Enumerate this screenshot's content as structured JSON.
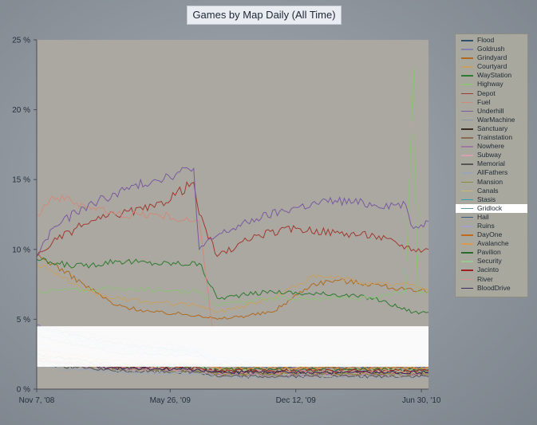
{
  "chart_data": {
    "type": "line",
    "title": "Games by Map Daily (All Time)",
    "xlabel": "",
    "ylabel": "",
    "ylim": [
      0,
      25
    ],
    "yticks": [
      "0 %",
      "5 %",
      "10 %",
      "15 %",
      "20 %",
      "25 %"
    ],
    "xtick_labels": [
      "Nov 7, '08",
      "May 26, '09",
      "Dec 12, '09",
      "Jun 30, '10"
    ],
    "highlight_band": [
      1.6,
      4.5
    ],
    "highlighted_series": "Gridlock",
    "legend_placement": "right",
    "series": [
      {
        "name": "Flood",
        "color": "#2d4f6e",
        "x": [
          0,
          100,
          150,
          207,
          230,
          300,
          380,
          430,
          480,
          499
        ],
        "y": [
          4.5,
          3.3,
          3.0,
          2.6,
          1.7,
          1.5,
          1.5,
          1.6,
          1.6,
          1.6
        ]
      },
      {
        "name": "Goldrush",
        "color": "#7f7fb0",
        "x": [
          0,
          100,
          200,
          207,
          230,
          300,
          380,
          430,
          480,
          499
        ],
        "y": [
          4.6,
          3.6,
          3.0,
          2.8,
          1.8,
          1.6,
          1.6,
          1.6,
          1.6,
          1.6
        ]
      },
      {
        "name": "Grindyard",
        "color": "#b06a1f",
        "x": [
          0,
          20,
          60,
          100,
          150,
          207,
          230,
          300,
          350,
          380,
          430,
          480,
          499
        ],
        "y": [
          9.5,
          9.0,
          7.5,
          6.0,
          5.5,
          5.3,
          5.0,
          5.5,
          7.5,
          7.8,
          7.5,
          7.0,
          7.0
        ]
      },
      {
        "name": "Courtyard",
        "color": "#c8a060",
        "x": [
          0,
          20,
          60,
          100,
          150,
          207,
          230,
          300,
          350,
          380,
          430,
          480,
          499
        ],
        "y": [
          9.0,
          8.5,
          7.0,
          6.5,
          6.2,
          6.0,
          5.5,
          6.5,
          8.0,
          8.0,
          7.5,
          7.5,
          7.0
        ]
      },
      {
        "name": "WayStation",
        "color": "#2f7a2f",
        "x": [
          0,
          20,
          60,
          100,
          150,
          207,
          230,
          300,
          350,
          380,
          430,
          480,
          499
        ],
        "y": [
          9.3,
          9.0,
          8.8,
          9.2,
          9.0,
          9.0,
          6.5,
          7.0,
          6.8,
          6.8,
          6.5,
          5.5,
          5.5
        ]
      },
      {
        "name": "Highway",
        "color": "#8fbf7a",
        "x": [
          0,
          100,
          207,
          230,
          300,
          430,
          470,
          480,
          485,
          490,
          499
        ],
        "y": [
          7.0,
          7.2,
          7.0,
          6.0,
          6.5,
          6.5,
          7.0,
          23.0,
          7.0,
          7.0,
          7.0
        ]
      },
      {
        "name": "Depot",
        "color": "#a03a30",
        "x": [
          0,
          20,
          60,
          100,
          150,
          200,
          207,
          230,
          280,
          330,
          380,
          430,
          480,
          499
        ],
        "y": [
          9.5,
          10.5,
          11.8,
          12.5,
          13.0,
          14.8,
          12.5,
          9.5,
          11.0,
          11.5,
          11.2,
          11.0,
          10.0,
          10.0
        ]
      },
      {
        "name": "Fuel",
        "color": "#d08a7a",
        "x": [
          0,
          20,
          60,
          100,
          150,
          200,
          207,
          230,
          300,
          400,
          499
        ],
        "y": [
          12.5,
          13.8,
          13.2,
          12.5,
          12.5,
          12.0,
          12.0,
          1.5,
          1.3,
          1.3,
          1.3
        ]
      },
      {
        "name": "Underhill",
        "color": "#7a5aa0",
        "x": [
          0,
          20,
          60,
          100,
          150,
          200,
          207,
          230,
          280,
          330,
          380,
          430,
          470,
          480,
          499
        ],
        "y": [
          9.5,
          11.5,
          13.0,
          14.0,
          15.0,
          15.8,
          10.0,
          11.0,
          12.2,
          13.0,
          13.5,
          13.2,
          13.2,
          11.5,
          12.0
        ]
      },
      {
        "name": "WarMachine",
        "color": "#8a96a8",
        "x": [
          0,
          100,
          207,
          230,
          300,
          400,
          499
        ],
        "y": [
          3.0,
          2.0,
          1.8,
          1.5,
          1.4,
          1.4,
          1.4
        ]
      },
      {
        "name": "Sanctuary",
        "color": "#3a2a20",
        "x": [
          0,
          100,
          207,
          230,
          300,
          400,
          499
        ],
        "y": [
          2.5,
          1.6,
          1.5,
          1.2,
          1.2,
          1.2,
          1.2
        ]
      },
      {
        "name": "Trainstation",
        "color": "#8a6a55",
        "x": [
          0,
          100,
          207,
          230,
          300,
          400,
          499
        ],
        "y": [
          2.2,
          1.5,
          1.4,
          1.1,
          1.1,
          1.1,
          1.1
        ]
      },
      {
        "name": "Nowhere",
        "color": "#a07aa0",
        "x": [
          0,
          100,
          207,
          230,
          300,
          400,
          499
        ],
        "y": [
          2.0,
          1.4,
          1.3,
          1.0,
          1.0,
          1.0,
          1.0
        ]
      },
      {
        "name": "Subway",
        "color": "#d8a0b0",
        "x": [
          0,
          100,
          207,
          230,
          300,
          400,
          499
        ],
        "y": [
          3.5,
          2.5,
          2.2,
          1.8,
          1.8,
          1.8,
          1.8
        ]
      },
      {
        "name": "Memorial",
        "color": "#555555",
        "x": [
          0,
          100,
          207,
          230,
          300,
          400,
          499
        ],
        "y": [
          1.8,
          1.3,
          1.2,
          0.9,
          0.9,
          0.9,
          0.9
        ]
      },
      {
        "name": "AllFathers",
        "color": "#9aa6b8",
        "x": [
          0,
          100,
          207,
          230,
          300,
          400,
          499
        ],
        "y": [
          1.6,
          1.2,
          1.1,
          0.8,
          0.8,
          0.8,
          0.8
        ]
      },
      {
        "name": "Mansion",
        "color": "#8a8a3a",
        "x": [
          0,
          100,
          207,
          230,
          300,
          400,
          499
        ],
        "y": [
          2.0,
          1.5,
          1.3,
          1.1,
          1.1,
          1.1,
          1.1
        ]
      },
      {
        "name": "Canals",
        "color": "#c8b870",
        "x": [
          0,
          100,
          207,
          230,
          300,
          400,
          499
        ],
        "y": [
          3.5,
          2.2,
          2.0,
          1.7,
          1.7,
          1.7,
          1.7
        ]
      },
      {
        "name": "Stasis",
        "color": "#2aa0b8",
        "x": [
          0,
          100,
          207,
          230,
          300,
          400,
          499
        ],
        "y": [
          4.3,
          3.0,
          2.8,
          2.0,
          1.9,
          1.9,
          1.9
        ]
      },
      {
        "name": "Gridlock",
        "color": "#5a9aa8",
        "x": [
          0,
          100,
          207,
          230,
          300,
          400,
          499
        ],
        "y": [
          4.0,
          2.8,
          2.6,
          2.2,
          2.0,
          2.0,
          2.0
        ]
      },
      {
        "name": "Hail",
        "color": "#3a5a80",
        "x": [
          0,
          100,
          207,
          230,
          300,
          400,
          499
        ],
        "y": [
          3.8,
          2.6,
          2.4,
          1.9,
          1.8,
          1.8,
          1.8
        ]
      },
      {
        "name": "Ruins",
        "color": "#a8a0c8",
        "x": [
          0,
          100,
          207,
          230,
          300,
          400,
          499
        ],
        "y": [
          3.2,
          2.4,
          2.2,
          1.9,
          1.9,
          1.9,
          1.9
        ]
      },
      {
        "name": "DayOne",
        "color": "#c06a1a",
        "x": [
          0,
          100,
          207,
          230,
          300,
          400,
          499
        ],
        "y": [
          2.8,
          2.0,
          1.8,
          1.5,
          1.5,
          1.5,
          1.5
        ]
      },
      {
        "name": "Avalanche",
        "color": "#d89a50",
        "x": [
          0,
          100,
          207,
          230,
          300,
          400,
          499
        ],
        "y": [
          2.6,
          1.9,
          1.7,
          1.5,
          1.5,
          1.5,
          1.5
        ]
      },
      {
        "name": "Pavilion",
        "color": "#2a6a2a",
        "x": [
          0,
          100,
          207,
          230,
          300,
          400,
          499
        ],
        "y": [
          2.4,
          1.8,
          1.6,
          1.4,
          1.4,
          1.4,
          1.4
        ]
      },
      {
        "name": "Security",
        "color": "#9ac890",
        "x": [
          0,
          100,
          207,
          230,
          300,
          400,
          499
        ],
        "y": [
          2.3,
          1.7,
          1.5,
          1.3,
          1.3,
          1.3,
          1.3
        ]
      },
      {
        "name": "Jacinto",
        "color": "#a02020",
        "x": [
          0,
          100,
          207,
          230,
          300,
          400,
          499
        ],
        "y": [
          2.2,
          1.6,
          1.5,
          1.3,
          1.3,
          1.3,
          1.3
        ]
      },
      {
        "name": "River",
        "color": "#d89090",
        "x": [
          0,
          100,
          207,
          230,
          300,
          400,
          499
        ],
        "y": [
          2.1,
          1.5,
          1.4,
          1.2,
          1.2,
          1.2,
          1.2
        ]
      },
      {
        "name": "BloodDrive",
        "color": "#3a2a60",
        "x": [
          0,
          100,
          207,
          230,
          300,
          400,
          499
        ],
        "y": [
          2.0,
          1.5,
          1.4,
          1.2,
          1.2,
          1.2,
          1.2
        ]
      }
    ]
  }
}
